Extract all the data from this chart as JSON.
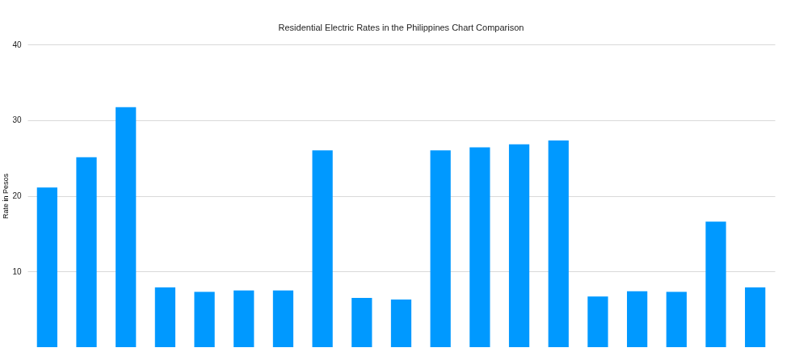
{
  "chart_data": {
    "type": "bar",
    "title": "Residential Electric Rates in the Philippines Chart Comparison",
    "ylabel": "Rate in Pesos",
    "categories": [
      null,
      null,
      null,
      null,
      null,
      null,
      null,
      null,
      null,
      null,
      null,
      null,
      null,
      null,
      null,
      null,
      null,
      null,
      null
    ],
    "values": [
      21.1,
      25.1,
      31.7,
      7.9,
      7.3,
      7.5,
      7.5,
      26.0,
      6.5,
      6.3,
      26.0,
      26.4,
      26.8,
      27.3,
      6.7,
      7.4,
      7.3,
      16.6,
      7.9
    ],
    "color": "#0099ff",
    "ylim": [
      0,
      40
    ],
    "yticks": [
      10,
      20,
      30,
      40
    ],
    "grid": "y",
    "tick_labels": "y"
  }
}
